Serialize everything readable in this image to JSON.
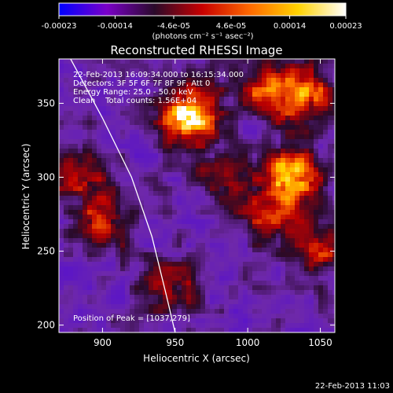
{
  "colorbar": {
    "tick_labels": [
      "-0.00023",
      "-0.00014",
      "-4.6e-05",
      "4.6e-05",
      "0.00014",
      "0.00023"
    ],
    "units": "(photons cm⁻² s⁻¹ asec⁻²)",
    "range": [
      -0.00023,
      0.00023
    ],
    "colors": [
      "#0000ff",
      "#7a00c8",
      "#2a0a2a",
      "#c80000",
      "#ff6a00",
      "#ffd200",
      "#ffffff"
    ]
  },
  "chart_data": {
    "type": "heatmap",
    "title": "Reconstructed RHESSI Image",
    "xlabel": "Heliocentric X (arcsec)",
    "ylabel": "Heliocentric Y (arcsec)",
    "xlim": [
      870,
      1060
    ],
    "ylim": [
      195,
      380
    ],
    "x_ticks": [
      900,
      950,
      1000,
      1050
    ],
    "y_ticks": [
      200,
      250,
      300,
      350
    ],
    "annotations": [
      "22-Feb-2013 16:09:34.000 to 16:15:34.000",
      "Detectors: 3F 5F 6F 7F 8F 9F, Att 0",
      "Energy Range: 25.0 - 50.0 keV",
      "Clean    Total counts: 1.56E+04"
    ],
    "peak_label": "Position of Peak = [1037,279]",
    "peak": [
      1037,
      279
    ],
    "limb_curve": [
      [
        878,
        380
      ],
      [
        900,
        340
      ],
      [
        920,
        300
      ],
      [
        934,
        260
      ],
      [
        944,
        220
      ],
      [
        950,
        195
      ]
    ],
    "sources": [
      {
        "x": 960,
        "y": 340,
        "strength": 1.0
      },
      {
        "x": 1030,
        "y": 300,
        "strength": 0.95
      },
      {
        "x": 1040,
        "y": 355,
        "strength": 0.7
      },
      {
        "x": 1010,
        "y": 360,
        "strength": 0.55
      },
      {
        "x": 900,
        "y": 268,
        "strength": 0.55
      },
      {
        "x": 885,
        "y": 305,
        "strength": 0.5
      },
      {
        "x": 945,
        "y": 225,
        "strength": 0.45
      },
      {
        "x": 1015,
        "y": 270,
        "strength": 0.4
      },
      {
        "x": 1050,
        "y": 250,
        "strength": 0.45
      },
      {
        "x": 985,
        "y": 300,
        "strength": 0.35
      }
    ]
  },
  "timestamp": "22-Feb-2013 11:03"
}
